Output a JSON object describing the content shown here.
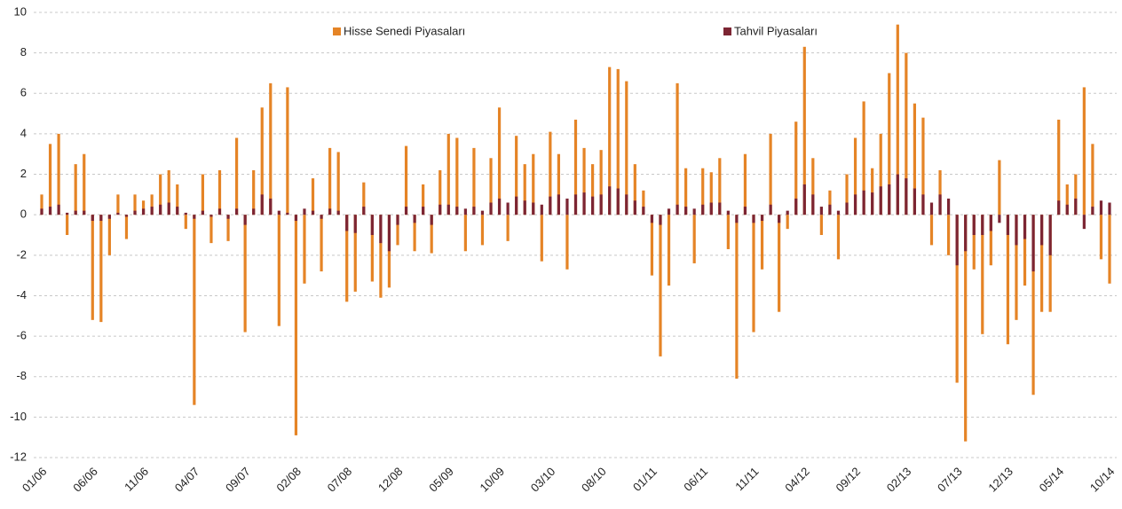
{
  "chart_data": {
    "type": "bar",
    "categories": [
      "01/06",
      null,
      null,
      null,
      null,
      null,
      "06/06",
      null,
      null,
      null,
      null,
      null,
      "11/06",
      null,
      null,
      null,
      null,
      null,
      "04/07",
      null,
      null,
      null,
      null,
      null,
      "09/07",
      null,
      null,
      null,
      null,
      null,
      "02/08",
      null,
      null,
      null,
      null,
      null,
      "07/08",
      null,
      null,
      null,
      null,
      null,
      "12/08",
      null,
      null,
      null,
      null,
      null,
      "05/09",
      null,
      null,
      null,
      null,
      null,
      "10/09",
      null,
      null,
      null,
      null,
      null,
      "03/10",
      null,
      null,
      null,
      null,
      null,
      "08/10",
      null,
      null,
      null,
      null,
      null,
      "01/11",
      null,
      null,
      null,
      null,
      null,
      "06/11",
      null,
      null,
      null,
      null,
      null,
      "11/11",
      null,
      null,
      null,
      null,
      null,
      "04/12",
      null,
      null,
      null,
      null,
      null,
      "09/12",
      null,
      null,
      null,
      null,
      null,
      "02/13",
      null,
      null,
      null,
      null,
      null,
      "07/13",
      null,
      null,
      null,
      null,
      null,
      "12/13",
      null,
      null,
      null,
      null,
      null,
      "05/14",
      null,
      null,
      null,
      null,
      null,
      "10/14"
    ],
    "series": [
      {
        "name": "Hisse Senedi Piyasaları",
        "color": "#e58426",
        "values": [
          1,
          3.5,
          4,
          -1,
          2.5,
          3,
          -5.2,
          -5.3,
          -2,
          1,
          -1.2,
          1,
          0.7,
          1,
          2,
          2.2,
          1.5,
          -0.7,
          -9.4,
          2,
          -1.4,
          2.2,
          -1.3,
          3.8,
          -5.8,
          2.2,
          5.3,
          6.5,
          -5.5,
          6.3,
          -10.9,
          -3.4,
          1.8,
          -2.8,
          3.3,
          3.1,
          -4.3,
          -3.8,
          1.6,
          -3.3,
          -4.1,
          -3.6,
          -1.5,
          3.4,
          -1.8,
          1.5,
          -1.9,
          2.2,
          4,
          3.8,
          -1.8,
          3.3,
          -1.5,
          2.8,
          5.3,
          -1.3,
          3.9,
          2.5,
          3,
          -2.3,
          4.1,
          3,
          -2.7,
          4.7,
          3.3,
          2.5,
          3.2,
          7.3,
          7.2,
          6.6,
          2.5,
          1.2,
          -3,
          -7,
          -3.5,
          6.5,
          2.3,
          -2.4,
          2.3,
          2.1,
          2.8,
          -1.7,
          -8.1,
          3,
          -5.8,
          -2.7,
          4,
          -4.8,
          -0.7,
          4.6,
          8.3,
          2.8,
          -1,
          1.2,
          -2.2,
          2,
          3.8,
          5.6,
          2.3,
          4,
          7,
          9.4,
          8,
          5.5,
          4.8,
          -1.5,
          2.2,
          -2,
          -8.3,
          -11.2,
          -2.7,
          -5.9,
          -2.5,
          2.7,
          -6.4,
          -5.2,
          -3.5,
          -8.9,
          -4.8,
          -4.8,
          4.7,
          1.5,
          2,
          6.3,
          3.5,
          -2.2,
          -3.4
        ]
      },
      {
        "name": "Tahvil Piyasaları",
        "color": "#7c2533",
        "values": [
          0.3,
          0.4,
          0.5,
          0.1,
          0.2,
          0.2,
          -0.3,
          -0.3,
          -0.2,
          0.1,
          -0.1,
          0.2,
          0.3,
          0.4,
          0.5,
          0.6,
          0.4,
          0.1,
          -0.2,
          0.2,
          -0.1,
          0.3,
          -0.2,
          0.3,
          -0.5,
          0.3,
          1,
          0.8,
          0.2,
          0.1,
          -0.3,
          0.3,
          0.2,
          -0.2,
          0.3,
          0.2,
          -0.8,
          -0.9,
          0.4,
          -1,
          -1.4,
          -1.8,
          -0.5,
          0.4,
          -0.4,
          0.4,
          -0.5,
          0.5,
          0.5,
          0.4,
          0.3,
          0.4,
          0.2,
          0.6,
          0.8,
          0.6,
          0.9,
          0.7,
          0.6,
          0.5,
          0.9,
          1,
          0.8,
          1,
          1.1,
          0.9,
          1,
          1.4,
          1.3,
          1,
          0.7,
          0.4,
          -0.4,
          -0.5,
          0.3,
          0.5,
          0.4,
          0.3,
          0.5,
          0.6,
          0.6,
          0.2,
          -0.4,
          0.4,
          -0.4,
          -0.3,
          0.5,
          -0.4,
          0.2,
          0.8,
          1.5,
          1,
          0.4,
          0.5,
          0.2,
          0.6,
          1,
          1.2,
          1.1,
          1.4,
          1.5,
          2,
          1.8,
          1.3,
          1,
          0.6,
          1,
          0.8,
          -2.5,
          -1.8,
          -1,
          -1,
          -0.8,
          -0.4,
          -1,
          -1.5,
          -1.2,
          -2.8,
          -1.5,
          -2,
          0.7,
          0.5,
          0.8,
          -0.7,
          0.4,
          0.7,
          0.6
        ]
      }
    ],
    "ylim": [
      -12,
      10
    ],
    "yticks": [
      10,
      8,
      6,
      4,
      2,
      0,
      -2,
      -4,
      -6,
      -8,
      -10,
      -12
    ],
    "grid": true,
    "legend": "top"
  }
}
